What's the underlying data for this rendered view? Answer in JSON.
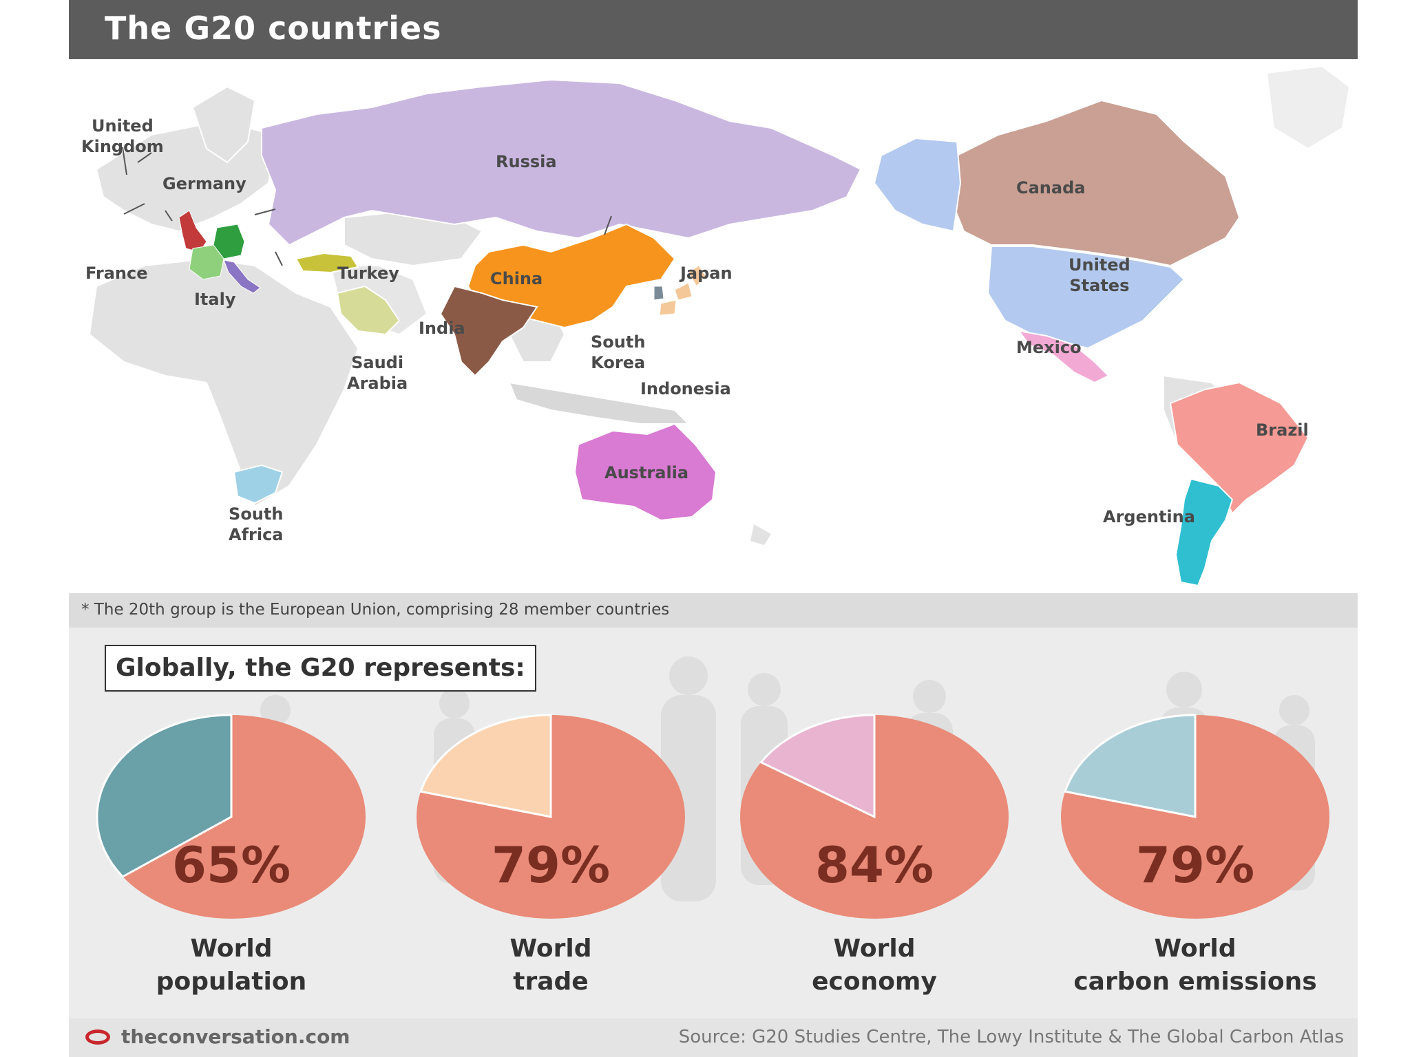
{
  "title": "The G20 countries",
  "colors": {
    "title_bar": "#5c5c5c",
    "land_grey": "#e2e2e2",
    "pie_main": "#e98b78",
    "pie_text": "#7a2e22"
  },
  "map": {
    "countries": [
      {
        "name": "United Kingdom",
        "label": "United\nKingdom",
        "color": "#c23a3a"
      },
      {
        "name": "Germany",
        "label": "Germany",
        "color": "#2e9e3e"
      },
      {
        "name": "France",
        "label": "France",
        "color": "#8fd07c"
      },
      {
        "name": "Italy",
        "label": "Italy",
        "color": "#8a74c4"
      },
      {
        "name": "Turkey",
        "label": "Turkey",
        "color": "#c8c23a"
      },
      {
        "name": "Saudi Arabia",
        "label": "Saudi\nArabia",
        "color": "#d6dc98"
      },
      {
        "name": "Russia",
        "label": "Russia",
        "color": "#c9b7e0"
      },
      {
        "name": "China",
        "label": "China",
        "color": "#f7941d"
      },
      {
        "name": "India",
        "label": "India",
        "color": "#8b5a46"
      },
      {
        "name": "Japan",
        "label": "Japan",
        "color": "#f5c89a"
      },
      {
        "name": "South Korea",
        "label": "South\nKorea",
        "color": "#7a8a96"
      },
      {
        "name": "Indonesia",
        "label": "Indonesia",
        "color": "#d8d8d8"
      },
      {
        "name": "Australia",
        "label": "Australia",
        "color": "#d97ad3"
      },
      {
        "name": "South Africa",
        "label": "South\nAfrica",
        "color": "#9ed1e6"
      },
      {
        "name": "Canada",
        "label": "Canada",
        "color": "#c9a093"
      },
      {
        "name": "United States",
        "label": "United\nStates",
        "color": "#b3c9ef"
      },
      {
        "name": "Mexico",
        "label": "Mexico",
        "color": "#f2a9d4"
      },
      {
        "name": "Brazil",
        "label": "Brazil",
        "color": "#f59a94"
      },
      {
        "name": "Argentina",
        "label": "Argentina",
        "color": "#2fbfd1"
      }
    ]
  },
  "footnote": "* The 20th group is the European Union, comprising 28 member countries",
  "stats_heading": "Globally, the G20 represents:",
  "chart_data": {
    "type": "pie",
    "charts": [
      {
        "label": "World\npopulation",
        "value": 65,
        "value_text": "65%",
        "rest_color": "#6aa0a8"
      },
      {
        "label": "World\ntrade",
        "value": 79,
        "value_text": "79%",
        "rest_color": "#fcd3b0"
      },
      {
        "label": "World\neconomy",
        "value": 84,
        "value_text": "84%",
        "rest_color": "#e9b4cf"
      },
      {
        "label": "World\ncarbon emissions",
        "value": 79,
        "value_text": "79%",
        "rest_color": "#a9cdd6"
      }
    ]
  },
  "footer": {
    "site": "theconversation.com",
    "source": "Source: G20 Studies Centre, The Lowy Institute & The Global Carbon Atlas"
  }
}
